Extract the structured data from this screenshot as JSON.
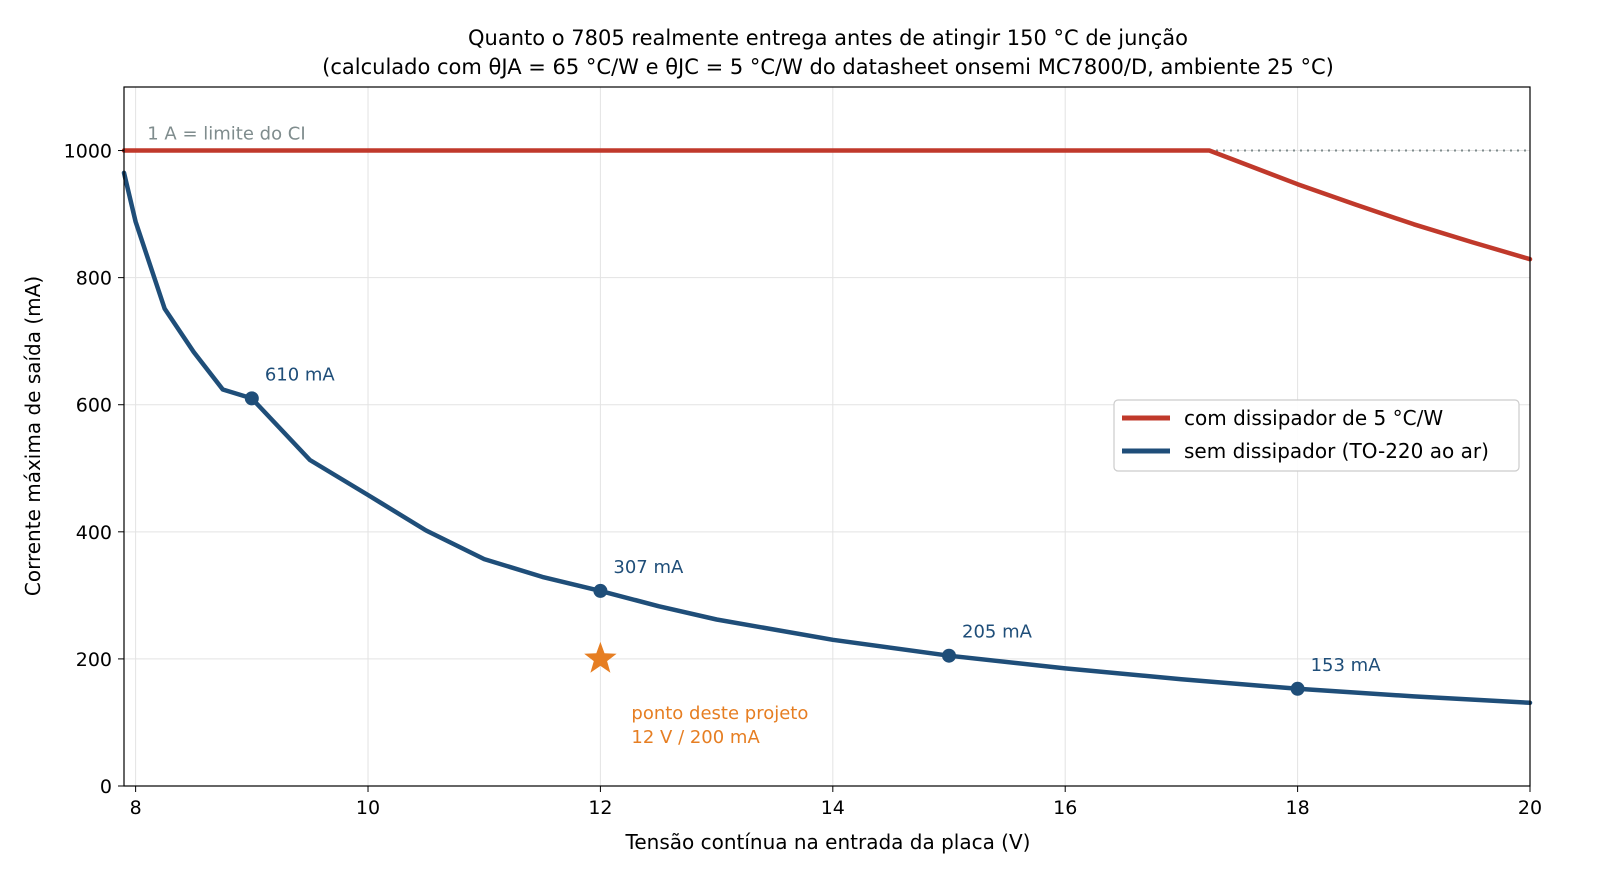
{
  "chart_data": {
    "type": "line",
    "title": "Quanto o 7805 realmente entrega antes de atingir 150 °C de junção",
    "subtitle": "(calculado com θJA = 65 °C/W e θJC = 5 °C/W do datasheet onsemi MC7800/D, ambiente 25 °C)",
    "xlabel": "Tensão contínua na entrada da placa (V)",
    "ylabel": "Corrente máxima de saída (mA)",
    "xlim": [
      7.9,
      20
    ],
    "ylim": [
      0,
      1100
    ],
    "xticks": [
      8,
      10,
      12,
      14,
      16,
      18,
      20
    ],
    "yticks": [
      0,
      200,
      400,
      600,
      800,
      1000
    ],
    "grid": true,
    "legend_position": "center-right",
    "series": [
      {
        "name": "com dissipador de 5 °C/W",
        "color": "#c0392b",
        "x": [
          7.9,
          9,
          10,
          11,
          12,
          13,
          14,
          15,
          16,
          17,
          17.24,
          17.5,
          18,
          18.5,
          19,
          19.5,
          20
        ],
        "values": [
          1000,
          1000,
          1000,
          1000,
          1000,
          1000,
          1000,
          1000,
          1000,
          1000,
          1000,
          982,
          947,
          915,
          884,
          856,
          829
        ]
      },
      {
        "name": "sem dissipador (TO-220 ao ar)",
        "color": "#1f4e79",
        "x": [
          7.9,
          8,
          8.25,
          8.5,
          8.75,
          9,
          9.5,
          10,
          10.5,
          11,
          11.5,
          12,
          12.5,
          13,
          14,
          15,
          16,
          17,
          18,
          19,
          20
        ],
        "values": [
          965,
          888,
          751,
          683,
          624,
          610,
          513,
          458,
          402,
          357,
          329,
          307,
          283,
          262,
          230,
          205,
          185,
          168,
          153,
          141,
          131
        ]
      }
    ],
    "markers": [
      {
        "x": 9,
        "y": 610,
        "label": "610 mA"
      },
      {
        "x": 12,
        "y": 307,
        "label": "307 mA"
      },
      {
        "x": 15,
        "y": 205,
        "label": "205 mA"
      },
      {
        "x": 18,
        "y": 153,
        "label": "153 mA"
      }
    ],
    "limit_line": {
      "y": 1000,
      "label": "1 A = limite do CI",
      "color": "#7f8c8d"
    },
    "project_point": {
      "x": 12,
      "y": 200,
      "color": "#e67e22",
      "label_line1": "ponto deste projeto",
      "label_line2": "12 V / 200 mA"
    }
  }
}
